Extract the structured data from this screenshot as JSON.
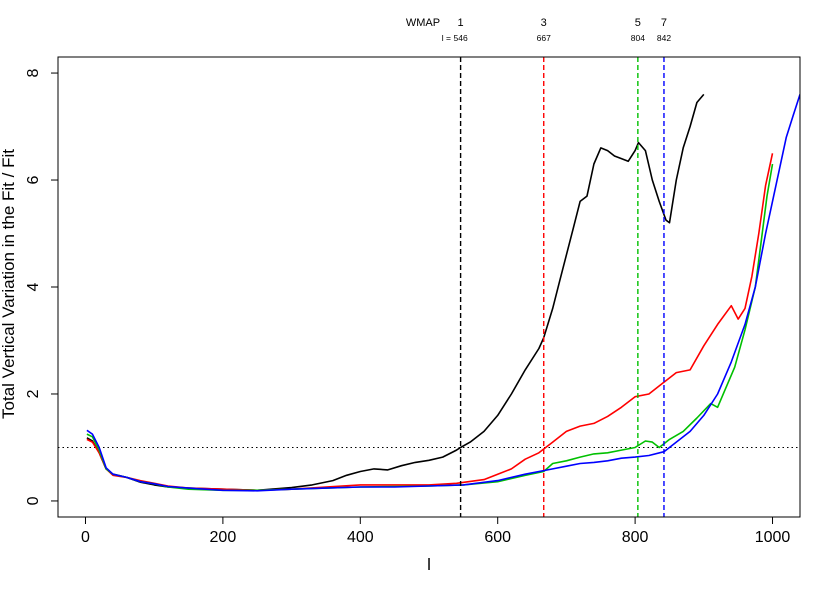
{
  "chart_data": {
    "type": "line",
    "title": "",
    "xlabel": "l",
    "ylabel": "Total Vertical Variation in the Fit / Fit",
    "xlim": [
      -40,
      1040
    ],
    "ylim": [
      -0.3,
      8.3
    ],
    "x_ticks": [
      0,
      200,
      400,
      600,
      800,
      1000
    ],
    "y_ticks": [
      0,
      2,
      4,
      6,
      8
    ],
    "reference_line": {
      "y": 1,
      "style": "dotted"
    },
    "top_annotation": {
      "header": "WMAP",
      "l_prefix": "l =",
      "markers": [
        {
          "name": "1",
          "l": 546,
          "l_label": "546",
          "color": "#000000"
        },
        {
          "name": "3",
          "l": 667,
          "l_label": "667",
          "color": "#ff0000"
        },
        {
          "name": "5",
          "l": 804,
          "l_label": "804",
          "color": "#00c000"
        },
        {
          "name": "7",
          "l": 842,
          "l_label": "842",
          "color": "#0000ff"
        }
      ]
    },
    "series": [
      {
        "color": "#000000",
        "points": [
          [
            2,
            1.18
          ],
          [
            10,
            1.12
          ],
          [
            20,
            0.9
          ],
          [
            30,
            0.6
          ],
          [
            40,
            0.5
          ],
          [
            60,
            0.44
          ],
          [
            80,
            0.35
          ],
          [
            100,
            0.3
          ],
          [
            120,
            0.26
          ],
          [
            150,
            0.24
          ],
          [
            200,
            0.22
          ],
          [
            250,
            0.2
          ],
          [
            300,
            0.25
          ],
          [
            330,
            0.3
          ],
          [
            360,
            0.38
          ],
          [
            380,
            0.48
          ],
          [
            400,
            0.55
          ],
          [
            420,
            0.6
          ],
          [
            440,
            0.58
          ],
          [
            460,
            0.66
          ],
          [
            480,
            0.72
          ],
          [
            500,
            0.76
          ],
          [
            520,
            0.82
          ],
          [
            540,
            0.95
          ],
          [
            546,
            1.0
          ],
          [
            560,
            1.1
          ],
          [
            580,
            1.3
          ],
          [
            600,
            1.6
          ],
          [
            620,
            2.0
          ],
          [
            640,
            2.45
          ],
          [
            660,
            2.85
          ],
          [
            667,
            3.05
          ],
          [
            680,
            3.6
          ],
          [
            690,
            4.1
          ],
          [
            700,
            4.6
          ],
          [
            710,
            5.1
          ],
          [
            720,
            5.6
          ],
          [
            730,
            5.7
          ],
          [
            740,
            6.3
          ],
          [
            750,
            6.6
          ],
          [
            760,
            6.55
          ],
          [
            770,
            6.45
          ],
          [
            780,
            6.4
          ],
          [
            790,
            6.35
          ],
          [
            800,
            6.55
          ],
          [
            805,
            6.7
          ],
          [
            815,
            6.55
          ],
          [
            825,
            6.0
          ],
          [
            835,
            5.6
          ],
          [
            845,
            5.25
          ],
          [
            850,
            5.2
          ],
          [
            860,
            6.0
          ],
          [
            870,
            6.6
          ],
          [
            880,
            7.0
          ],
          [
            890,
            7.45
          ],
          [
            900,
            7.6
          ]
        ]
      },
      {
        "color": "#ff0000",
        "points": [
          [
            2,
            1.15
          ],
          [
            10,
            1.1
          ],
          [
            20,
            0.9
          ],
          [
            30,
            0.6
          ],
          [
            40,
            0.48
          ],
          [
            60,
            0.44
          ],
          [
            80,
            0.38
          ],
          [
            100,
            0.33
          ],
          [
            120,
            0.28
          ],
          [
            150,
            0.24
          ],
          [
            200,
            0.22
          ],
          [
            250,
            0.2
          ],
          [
            300,
            0.22
          ],
          [
            350,
            0.26
          ],
          [
            400,
            0.3
          ],
          [
            450,
            0.3
          ],
          [
            500,
            0.3
          ],
          [
            540,
            0.33
          ],
          [
            580,
            0.4
          ],
          [
            600,
            0.5
          ],
          [
            620,
            0.6
          ],
          [
            640,
            0.78
          ],
          [
            660,
            0.9
          ],
          [
            680,
            1.1
          ],
          [
            700,
            1.3
          ],
          [
            720,
            1.4
          ],
          [
            740,
            1.45
          ],
          [
            760,
            1.58
          ],
          [
            780,
            1.75
          ],
          [
            800,
            1.95
          ],
          [
            820,
            2.0
          ],
          [
            840,
            2.2
          ],
          [
            860,
            2.4
          ],
          [
            880,
            2.45
          ],
          [
            900,
            2.9
          ],
          [
            920,
            3.3
          ],
          [
            940,
            3.65
          ],
          [
            950,
            3.4
          ],
          [
            960,
            3.6
          ],
          [
            970,
            4.2
          ],
          [
            980,
            5.0
          ],
          [
            990,
            5.9
          ],
          [
            1000,
            6.5
          ]
        ]
      },
      {
        "color": "#00c000",
        "points": [
          [
            2,
            1.25
          ],
          [
            10,
            1.2
          ],
          [
            20,
            0.95
          ],
          [
            30,
            0.6
          ],
          [
            40,
            0.5
          ],
          [
            60,
            0.44
          ],
          [
            80,
            0.36
          ],
          [
            100,
            0.32
          ],
          [
            120,
            0.26
          ],
          [
            150,
            0.22
          ],
          [
            200,
            0.2
          ],
          [
            250,
            0.2
          ],
          [
            300,
            0.22
          ],
          [
            350,
            0.24
          ],
          [
            400,
            0.26
          ],
          [
            450,
            0.27
          ],
          [
            500,
            0.28
          ],
          [
            550,
            0.3
          ],
          [
            600,
            0.36
          ],
          [
            640,
            0.48
          ],
          [
            667,
            0.55
          ],
          [
            680,
            0.7
          ],
          [
            700,
            0.75
          ],
          [
            720,
            0.82
          ],
          [
            740,
            0.88
          ],
          [
            760,
            0.9
          ],
          [
            780,
            0.95
          ],
          [
            800,
            1.0
          ],
          [
            815,
            1.12
          ],
          [
            825,
            1.1
          ],
          [
            835,
            1.0
          ],
          [
            850,
            1.15
          ],
          [
            870,
            1.3
          ],
          [
            890,
            1.55
          ],
          [
            910,
            1.82
          ],
          [
            920,
            1.75
          ],
          [
            930,
            2.05
          ],
          [
            945,
            2.5
          ],
          [
            960,
            3.2
          ],
          [
            975,
            4.0
          ],
          [
            985,
            5.0
          ],
          [
            992,
            5.7
          ],
          [
            1000,
            6.3
          ]
        ]
      },
      {
        "color": "#0000ff",
        "points": [
          [
            2,
            1.32
          ],
          [
            10,
            1.25
          ],
          [
            20,
            1.0
          ],
          [
            30,
            0.62
          ],
          [
            40,
            0.5
          ],
          [
            60,
            0.44
          ],
          [
            80,
            0.36
          ],
          [
            100,
            0.32
          ],
          [
            120,
            0.27
          ],
          [
            150,
            0.24
          ],
          [
            200,
            0.2
          ],
          [
            250,
            0.19
          ],
          [
            300,
            0.22
          ],
          [
            350,
            0.24
          ],
          [
            400,
            0.26
          ],
          [
            450,
            0.26
          ],
          [
            500,
            0.28
          ],
          [
            550,
            0.3
          ],
          [
            600,
            0.38
          ],
          [
            640,
            0.5
          ],
          [
            680,
            0.6
          ],
          [
            700,
            0.65
          ],
          [
            720,
            0.7
          ],
          [
            740,
            0.72
          ],
          [
            760,
            0.75
          ],
          [
            780,
            0.8
          ],
          [
            800,
            0.82
          ],
          [
            820,
            0.85
          ],
          [
            842,
            0.92
          ],
          [
            860,
            1.1
          ],
          [
            880,
            1.3
          ],
          [
            900,
            1.6
          ],
          [
            920,
            2.0
          ],
          [
            940,
            2.6
          ],
          [
            960,
            3.3
          ],
          [
            975,
            4.0
          ],
          [
            990,
            5.0
          ],
          [
            1000,
            5.6
          ],
          [
            1010,
            6.2
          ],
          [
            1020,
            6.8
          ],
          [
            1030,
            7.2
          ],
          [
            1040,
            7.6
          ]
        ]
      }
    ]
  }
}
